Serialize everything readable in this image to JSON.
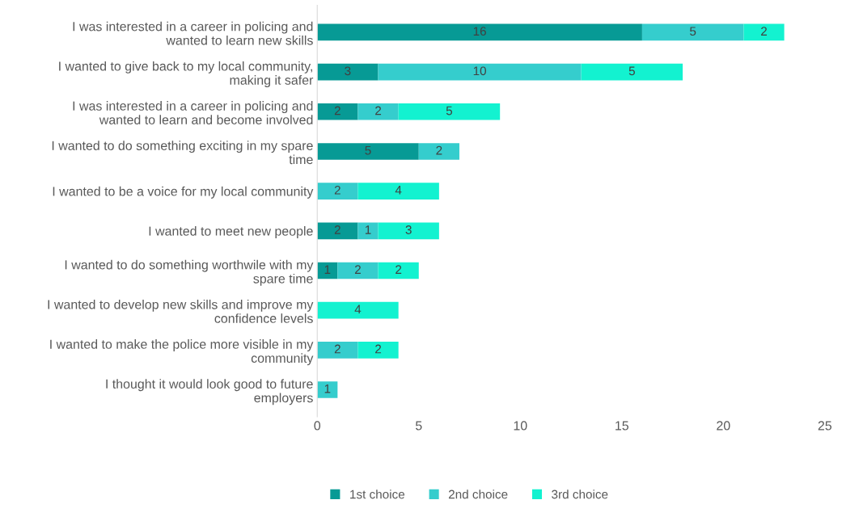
{
  "chart_data": {
    "type": "bar",
    "orientation": "horizontal",
    "stacked": true,
    "data_labels": true,
    "legend": "bottom",
    "grid": false,
    "categories": [
      "I was interested in a career in policing and wanted to learn new skills",
      "I wanted to give back to my local community, making it safer",
      "I was interested in a career in policing and wanted to learn and become involved",
      "I wanted to do something exciting in my spare time",
      "I wanted to be a voice for my local community",
      "I wanted to meet new people",
      "I wanted to do something worthwile with my spare time",
      "I wanted to develop new skills and improve my confidence levels",
      "I wanted to make the police more visible in my community",
      "I thought it would look good to future employers"
    ],
    "series": [
      {
        "name": "1st choice",
        "color": "#079a95",
        "values": [
          16,
          3,
          2,
          5,
          null,
          2,
          1,
          null,
          null,
          null
        ]
      },
      {
        "name": "2nd choice",
        "color": "#35cdcd",
        "values": [
          5,
          10,
          2,
          2,
          2,
          1,
          2,
          null,
          2,
          1
        ]
      },
      {
        "name": "3rd choice",
        "color": "#13f2d0",
        "values": [
          2,
          5,
          5,
          null,
          4,
          3,
          2,
          4,
          2,
          null
        ]
      }
    ],
    "xlim": [
      0,
      25
    ],
    "xticks": [
      0,
      5,
      10,
      15,
      20,
      25
    ]
  }
}
